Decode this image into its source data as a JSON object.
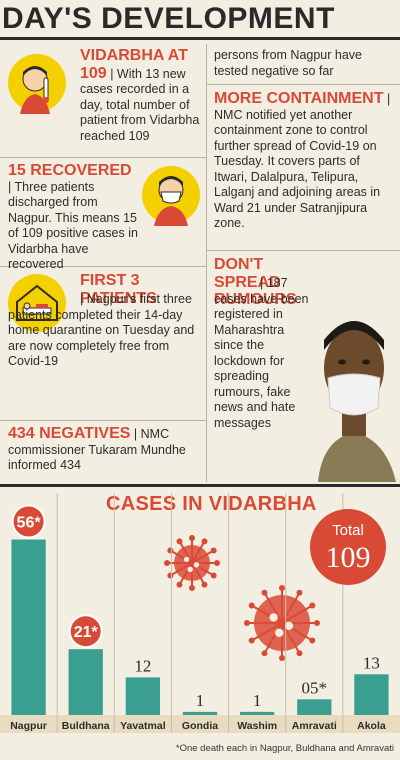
{
  "header": {
    "title": "DAY'S DEVELOPMENT"
  },
  "left": {
    "vidarbha": {
      "headline": "VIDARBHA AT 109",
      "text": "| With 13 new cases recorded in a day, total number of patient from Vidarbha reached 109"
    },
    "recovered": {
      "headline": "15 RECOVERED",
      "text": "| Three patients discharged from Nagpur. This means 15 of 109 positive cases in Vidarbha have recovered"
    },
    "first3": {
      "headline": "FIRST 3 PATIENTS",
      "text": "| Nagpur's first three patients completed their 14-day home quarantine on Tuesday and are now completely free from Covid-19"
    },
    "negatives": {
      "headline": "434 NEGATIVES",
      "text": "| NMC commissioner Tukaram Mundhe informed 434"
    }
  },
  "right": {
    "continued": "persons from Nagpur have tested negative so far",
    "containment": {
      "headline": "MORE CONTAINMENT",
      "text": "| NMC notified yet another containment zone to control further spread of Covid-19 on Tuesday. It covers parts of Itwari, Dalalpura, Telipura, Lalganj and adjoining areas in Ward 21 under Satranjipura zone."
    },
    "rumours": {
      "headline": "DON'T SPREAD RUMOURS",
      "text": "| 187 cases have been registered in Maharashtra since the lockdown for spreading rumours, fake news and hate messages"
    }
  },
  "chart_data": {
    "type": "bar",
    "title": "CASES IN VIDARBHA",
    "categories": [
      "Nagpur",
      "Buldhana",
      "Yavatmal",
      "Gondia",
      "Washim",
      "Amravati",
      "Akola"
    ],
    "values": [
      56,
      21,
      12,
      1,
      1,
      5,
      13
    ],
    "value_labels": [
      "56*",
      "21*",
      "12",
      "1",
      "1",
      "05*",
      "13"
    ],
    "total_label": "Total",
    "total_value": "109",
    "footnote": "*One death each in Nagpur, Buldhana and Amravati",
    "bar_color": "#3a9e90",
    "accent_color": "#d94a36",
    "ylim": [
      0,
      60
    ]
  }
}
